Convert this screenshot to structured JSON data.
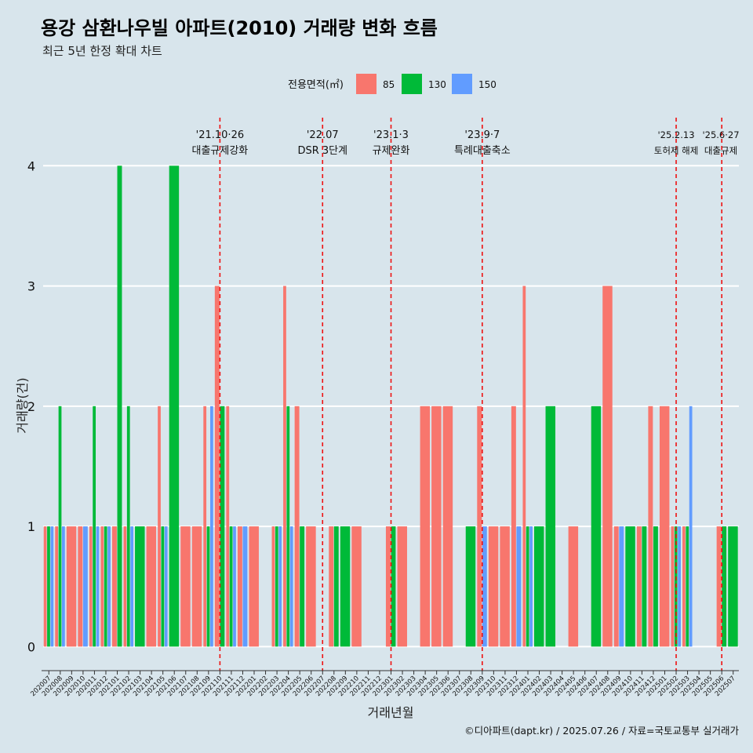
{
  "caption": "©디아파트(dapt.kr) / 2025.07.26 / 자료=국토교통부 실거래가",
  "colors": {
    "85": "#f8766d",
    "130": "#00ba38",
    "150": "#619cff",
    "vline": "#ee1111",
    "background": "#d8e5ec",
    "grid": "#ffffff"
  },
  "chart_data": {
    "type": "bar",
    "title": "용강 삼환나우빌 아파트(2010) 거래량 변화 흐름",
    "subtitle": "최근 5년 한정 확대 차트",
    "xlabel": "거래년월",
    "ylabel": "거래량(건)",
    "ylim": [
      -0.2,
      4.4
    ],
    "yticks": [
      0,
      1,
      2,
      3,
      4
    ],
    "grid": "horizontal",
    "legend": {
      "title": "전용면적(㎡)",
      "position": "top",
      "entries": [
        "85",
        "130",
        "150"
      ]
    },
    "months": [
      "202007",
      "202008",
      "202009",
      "202010",
      "202011",
      "202012",
      "202101",
      "202102",
      "202103",
      "202104",
      "202105",
      "202106",
      "202107",
      "202108",
      "202109",
      "202110",
      "202111",
      "202112",
      "202201",
      "202202",
      "202203",
      "202204",
      "202205",
      "202206",
      "202207",
      "202208",
      "202209",
      "202210",
      "202211",
      "202212",
      "202301",
      "202302",
      "202303",
      "202304",
      "202305",
      "202306",
      "202307",
      "202308",
      "202309",
      "202310",
      "202311",
      "202312",
      "202401",
      "202402",
      "202403",
      "202404",
      "202405",
      "202406",
      "202407",
      "202408",
      "202409",
      "202410",
      "202411",
      "202412",
      "202501",
      "202502",
      "202503",
      "202504",
      "202505",
      "202506",
      "202507"
    ],
    "bars": [
      [
        "202007",
        "85",
        1
      ],
      [
        "202007",
        "130",
        1
      ],
      [
        "202007",
        "150",
        1
      ],
      [
        "202008",
        "85",
        1
      ],
      [
        "202008",
        "130",
        2
      ],
      [
        "202008",
        "150",
        1
      ],
      [
        "202009",
        "85",
        1
      ],
      [
        "202010",
        "85",
        1
      ],
      [
        "202010",
        "150",
        1
      ],
      [
        "202011",
        "85",
        1
      ],
      [
        "202011",
        "130",
        2
      ],
      [
        "202011",
        "150",
        1
      ],
      [
        "202012",
        "85",
        1
      ],
      [
        "202012",
        "130",
        1
      ],
      [
        "202012",
        "150",
        1
      ],
      [
        "202101",
        "85",
        1
      ],
      [
        "202101",
        "130",
        4
      ],
      [
        "202102",
        "85",
        1
      ],
      [
        "202102",
        "130",
        2
      ],
      [
        "202102",
        "150",
        1
      ],
      [
        "202103",
        "130",
        1
      ],
      [
        "202104",
        "85",
        1
      ],
      [
        "202105",
        "85",
        2
      ],
      [
        "202105",
        "130",
        1
      ],
      [
        "202105",
        "150",
        1
      ],
      [
        "202106",
        "130",
        4
      ],
      [
        "202107",
        "85",
        1
      ],
      [
        "202108",
        "85",
        1
      ],
      [
        "202109",
        "85",
        2
      ],
      [
        "202109",
        "130",
        1
      ],
      [
        "202109",
        "150",
        2
      ],
      [
        "202110",
        "85",
        3
      ],
      [
        "202110",
        "130",
        2
      ],
      [
        "202111",
        "85",
        2
      ],
      [
        "202111",
        "130",
        1
      ],
      [
        "202111",
        "150",
        1
      ],
      [
        "202112",
        "85",
        1
      ],
      [
        "202112",
        "150",
        1
      ],
      [
        "202201",
        "85",
        1
      ],
      [
        "202203",
        "85",
        1
      ],
      [
        "202203",
        "130",
        1
      ],
      [
        "202203",
        "150",
        1
      ],
      [
        "202204",
        "85",
        3
      ],
      [
        "202204",
        "130",
        2
      ],
      [
        "202204",
        "150",
        1
      ],
      [
        "202205",
        "85",
        2
      ],
      [
        "202205",
        "130",
        1
      ],
      [
        "202206",
        "85",
        1
      ],
      [
        "202208",
        "85",
        1
      ],
      [
        "202208",
        "130",
        1
      ],
      [
        "202209",
        "130",
        1
      ],
      [
        "202210",
        "85",
        1
      ],
      [
        "202301",
        "85",
        1
      ],
      [
        "202301",
        "130",
        1
      ],
      [
        "202302",
        "85",
        1
      ],
      [
        "202304",
        "85",
        2
      ],
      [
        "202305",
        "85",
        2
      ],
      [
        "202306",
        "85",
        2
      ],
      [
        "202308",
        "130",
        1
      ],
      [
        "202309",
        "85",
        2
      ],
      [
        "202309",
        "150",
        1
      ],
      [
        "202310",
        "85",
        1
      ],
      [
        "202311",
        "85",
        1
      ],
      [
        "202312",
        "85",
        2
      ],
      [
        "202312",
        "150",
        1
      ],
      [
        "202401",
        "85",
        3
      ],
      [
        "202401",
        "130",
        1
      ],
      [
        "202401",
        "150",
        1
      ],
      [
        "202402",
        "130",
        1
      ],
      [
        "202403",
        "130",
        2
      ],
      [
        "202405",
        "85",
        1
      ],
      [
        "202407",
        "130",
        2
      ],
      [
        "202408",
        "85",
        3
      ],
      [
        "202409",
        "85",
        1
      ],
      [
        "202409",
        "150",
        1
      ],
      [
        "202410",
        "130",
        1
      ],
      [
        "202411",
        "85",
        1
      ],
      [
        "202411",
        "130",
        1
      ],
      [
        "202412",
        "85",
        2
      ],
      [
        "202412",
        "130",
        1
      ],
      [
        "202501",
        "85",
        2
      ],
      [
        "202502",
        "85",
        1
      ],
      [
        "202502",
        "130",
        1
      ],
      [
        "202502",
        "150",
        1
      ],
      [
        "202503",
        "85",
        1
      ],
      [
        "202503",
        "130",
        1
      ],
      [
        "202503",
        "150",
        2
      ],
      [
        "202506",
        "85",
        1
      ],
      [
        "202506",
        "130",
        1
      ],
      [
        "202507",
        "130",
        1
      ]
    ],
    "events": [
      {
        "x": "202110",
        "date": "'21.10·26",
        "label": "대출규제강화"
      },
      {
        "x": "202207",
        "date": "'22.07",
        "label": "DSR 3단계"
      },
      {
        "x": "202301",
        "date": "'23.1·3",
        "label": "규제완화"
      },
      {
        "x": "202309",
        "date": "'23.9·7",
        "label": "특례대출축소"
      },
      {
        "x": "202502",
        "date": "'25.2.13",
        "label": "토허제 해제"
      },
      {
        "x": "202506",
        "date": "'25.6·27",
        "label": "대출규제"
      }
    ]
  }
}
